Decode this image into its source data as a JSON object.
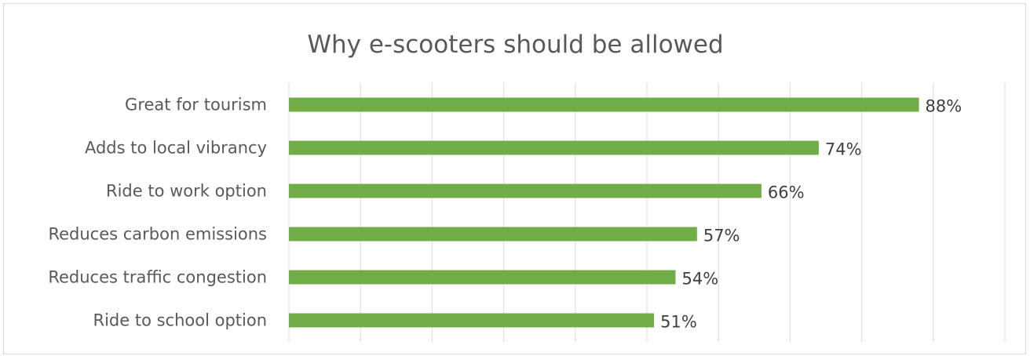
{
  "chart_data": {
    "type": "bar",
    "orientation": "horizontal",
    "title": "Why e-scooters should be allowed",
    "categories": [
      "Great for tourism",
      "Adds to local vibrancy",
      "Ride to work option",
      "Reduces carbon emissions",
      "Reduces traffic congestion",
      "Ride to school option"
    ],
    "values": [
      88,
      74,
      66,
      57,
      54,
      51
    ],
    "value_labels": [
      "88%",
      "74%",
      "66%",
      "57%",
      "54%",
      "51%"
    ],
    "xlim": [
      0,
      100
    ],
    "x_gridline_step": 10,
    "grid": true,
    "legend": "none",
    "bar_color": "#70ad47",
    "gridline_color": "#d9d9d9"
  }
}
